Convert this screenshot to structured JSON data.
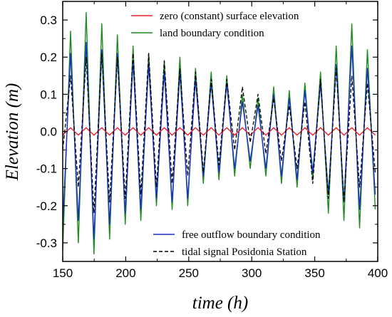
{
  "chart_data": {
    "type": "line",
    "xlabel": "time (h)",
    "ylabel": "Elevation (m)",
    "xlim": [
      150,
      400
    ],
    "ylim": [
      -0.35,
      0.35
    ],
    "x_ticks": [
      150,
      200,
      250,
      300,
      350,
      400
    ],
    "y_ticks": [
      -0.3,
      -0.2,
      -0.1,
      0.0,
      0.1,
      0.2,
      0.3
    ],
    "y_tick_labels": [
      "-0.3",
      "-0.2",
      "-0.1",
      "0.0",
      "0.1",
      "0.2",
      "0.3"
    ],
    "x": [
      150,
      156.2,
      162.4,
      168.6,
      174.8,
      181.0,
      187.2,
      193.4,
      199.6,
      205.8,
      212.0,
      218.2,
      224.4,
      230.6,
      236.8,
      243.0,
      249.2,
      255.4,
      261.6,
      267.8,
      274.0,
      280.2,
      286.4,
      292.6,
      298.8,
      305.0,
      311.2,
      317.4,
      323.6,
      329.8,
      336.0,
      342.2,
      348.4,
      354.6,
      360.8,
      367.0,
      373.2,
      379.4,
      385.6,
      391.8,
      398.0
    ],
    "series": [
      {
        "name": "zero (constant) surface elevation",
        "color": "#e8202a",
        "dash": "solid",
        "values": [
          -0.01,
          0.01,
          -0.01,
          0.01,
          -0.01,
          0.01,
          -0.01,
          0.01,
          -0.01,
          0.01,
          -0.01,
          0.01,
          -0.01,
          0.01,
          -0.01,
          0.01,
          -0.01,
          0.01,
          -0.01,
          0.01,
          -0.01,
          0.01,
          -0.01,
          0.01,
          -0.01,
          0.01,
          -0.01,
          0.01,
          -0.01,
          0.01,
          -0.01,
          0.01,
          -0.01,
          0.01,
          -0.01,
          0.01,
          -0.01,
          0.01,
          -0.01,
          0.01,
          -0.01
        ]
      },
      {
        "name": "land boundary condition",
        "color": "#1f8a1f",
        "dash": "solid",
        "values": [
          -0.32,
          0.27,
          -0.3,
          0.32,
          -0.33,
          0.29,
          -0.29,
          0.26,
          -0.25,
          0.23,
          -0.24,
          0.21,
          -0.2,
          0.19,
          -0.21,
          0.2,
          -0.2,
          0.17,
          -0.14,
          0.16,
          -0.13,
          0.15,
          -0.12,
          0.1,
          -0.1,
          0.09,
          -0.12,
          0.12,
          -0.14,
          0.11,
          -0.15,
          0.13,
          -0.13,
          0.16,
          -0.22,
          0.23,
          -0.24,
          0.29,
          -0.26,
          0.22,
          -0.21
        ]
      },
      {
        "name": "free outflow boundary condition",
        "color": "#1a2fc9",
        "dash": "solid",
        "values": [
          -0.25,
          0.21,
          -0.24,
          0.24,
          -0.29,
          0.22,
          -0.25,
          0.21,
          -0.22,
          0.19,
          -0.21,
          0.18,
          -0.18,
          0.16,
          -0.19,
          0.16,
          -0.18,
          0.14,
          -0.12,
          0.13,
          -0.11,
          0.13,
          -0.1,
          0.08,
          -0.08,
          0.07,
          -0.1,
          0.1,
          -0.12,
          0.09,
          -0.13,
          0.11,
          -0.11,
          0.13,
          -0.17,
          0.18,
          -0.19,
          0.23,
          -0.21,
          0.17,
          -0.17
        ]
      },
      {
        "name": "tidal signal Posidonia Station",
        "color": "#000000",
        "dash": "dashed",
        "values": [
          -0.05,
          0.15,
          -0.15,
          0.2,
          -0.22,
          0.21,
          -0.19,
          0.2,
          -0.18,
          0.21,
          -0.17,
          0.21,
          -0.15,
          0.19,
          -0.14,
          0.17,
          -0.12,
          0.16,
          -0.11,
          0.14,
          -0.09,
          0.14,
          -0.05,
          0.12,
          -0.03,
          0.1,
          -0.06,
          0.09,
          -0.08,
          0.07,
          -0.1,
          0.08,
          -0.14,
          0.14,
          -0.18,
          0.17,
          -0.19,
          0.15,
          -0.15,
          0.13,
          -0.11
        ]
      }
    ],
    "legend": {
      "top": [
        "zero (constant) surface elevation",
        "land boundary condition"
      ],
      "bottom": [
        "free outflow boundary condition",
        "tidal signal Posidonia Station"
      ]
    },
    "grid": false
  }
}
